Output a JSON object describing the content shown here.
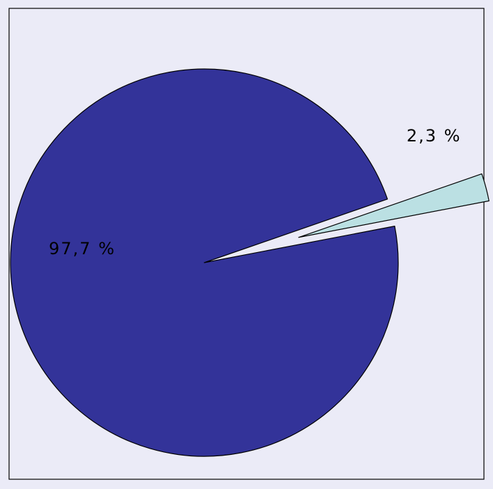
{
  "chart_data": {
    "type": "pie",
    "title": "",
    "slices": [
      {
        "value": 97.7,
        "label": "97,7 %",
        "color": "#333399",
        "exploded": false
      },
      {
        "value": 2.3,
        "label": "2,3 %",
        "color": "#bbe0e3",
        "exploded": true
      }
    ],
    "legend": false,
    "background_color": "#ebebf7",
    "border_color": "#000000"
  }
}
